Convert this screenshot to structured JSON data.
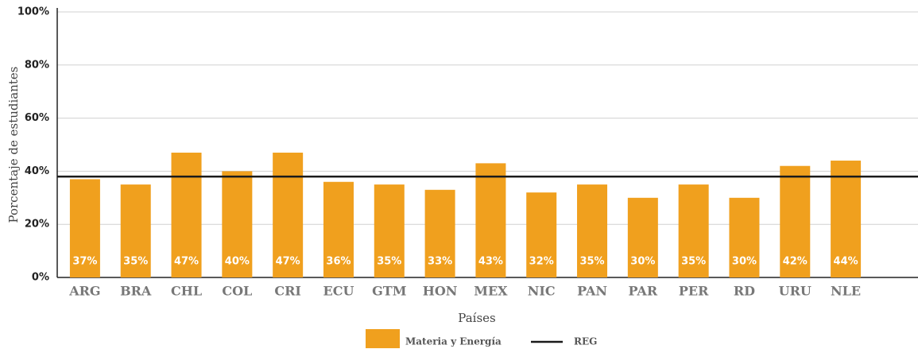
{
  "chart_data": {
    "type": "bar",
    "y_axis_label": "Porcentaje de estudiantes",
    "x_axis_label": "Países",
    "categories": [
      "ARG",
      "BRA",
      "CHL",
      "COL",
      "CRI",
      "ECU",
      "GTM",
      "HON",
      "MEX",
      "NIC",
      "PAN",
      "PAR",
      "PER",
      "RD",
      "URU",
      "NLE"
    ],
    "series": [
      {
        "name": "Materia y Energía",
        "color": "#f0a01e",
        "values": [
          37,
          35,
          47,
          40,
          47,
          36,
          35,
          33,
          43,
          32,
          35,
          30,
          35,
          30,
          42,
          44
        ],
        "value_labels": [
          "37%",
          "35%",
          "47%",
          "40%",
          "47%",
          "36%",
          "35%",
          "33%",
          "43%",
          "32%",
          "35%",
          "30%",
          "35%",
          "30%",
          "42%",
          "44%"
        ]
      }
    ],
    "reference_line": {
      "name": "REG",
      "value": 38,
      "color": "#1a1a1a"
    },
    "ylim": [
      0,
      100
    ],
    "yticks": [
      {
        "value": 0,
        "label": "0%"
      },
      {
        "value": 20,
        "label": "20%"
      },
      {
        "value": 40,
        "label": "40%"
      },
      {
        "value": 60,
        "label": "60%"
      },
      {
        "value": 80,
        "label": "80%"
      },
      {
        "value": 100,
        "label": "100%"
      }
    ],
    "grid": true
  }
}
